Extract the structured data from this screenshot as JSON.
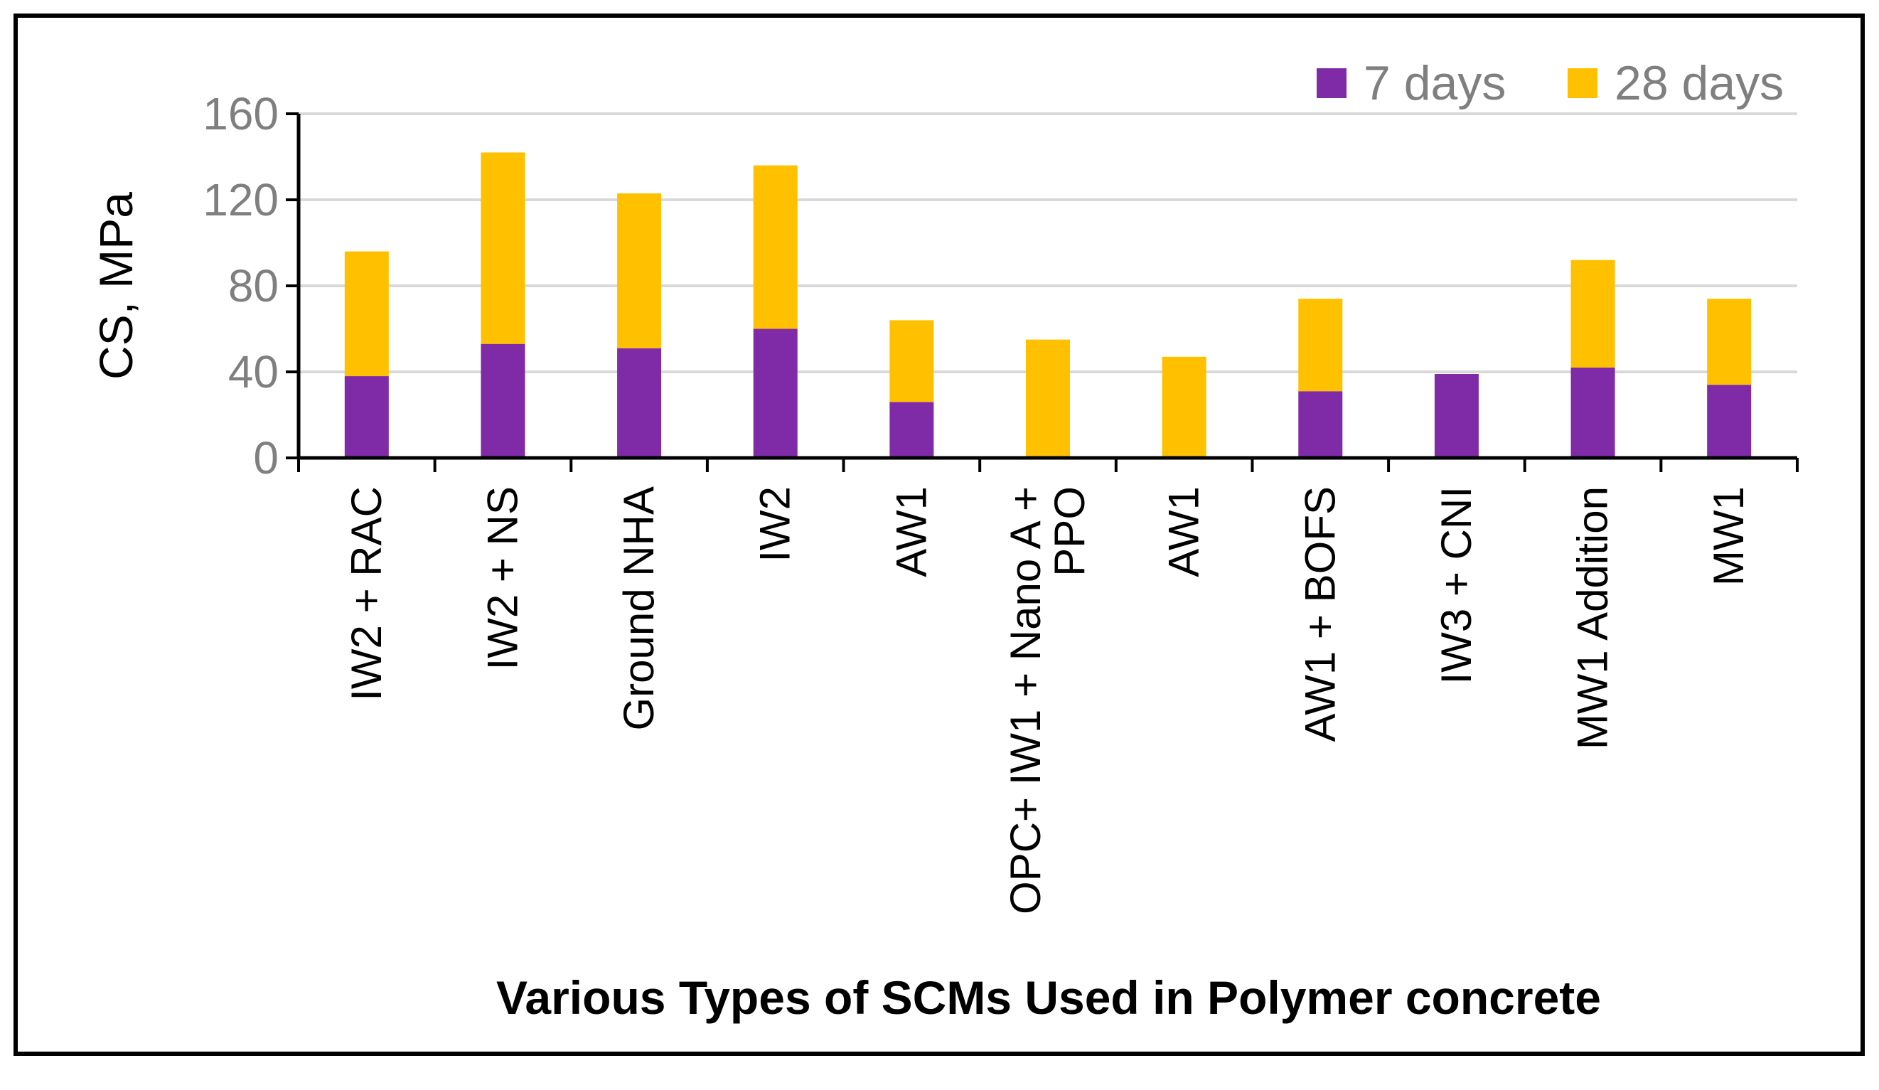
{
  "chart_data": {
    "type": "bar",
    "stacked": true,
    "xlabel": "Various Types of SCMs Used in Polymer concrete",
    "ylabel": "CS, MPa",
    "ylim": [
      0,
      160
    ],
    "yticks": [
      "0",
      "40",
      "80",
      "120",
      "160"
    ],
    "grid": true,
    "legend_position": "top-right",
    "categories": [
      [
        "IW2 + RAC"
      ],
      [
        "IW2 + NS"
      ],
      [
        "Ground NHA"
      ],
      [
        "IW2"
      ],
      [
        "AW1"
      ],
      [
        "OPC+ IW1 + Nano A +",
        "PPO"
      ],
      [
        "AW1"
      ],
      [
        "AW1 + BOFS"
      ],
      [
        "IW3 + CNI"
      ],
      [
        "MW1 Addition"
      ],
      [
        "MW1"
      ]
    ],
    "series": [
      {
        "name": "7 days",
        "color": "#7f2aa6",
        "values": [
          38,
          53,
          51,
          60,
          26,
          0,
          0,
          31,
          39,
          42,
          34
        ]
      },
      {
        "name": "28 days",
        "color": "#ffc000",
        "values": [
          58,
          89,
          72,
          76,
          38,
          55,
          47,
          43,
          0,
          50,
          40
        ]
      }
    ]
  }
}
